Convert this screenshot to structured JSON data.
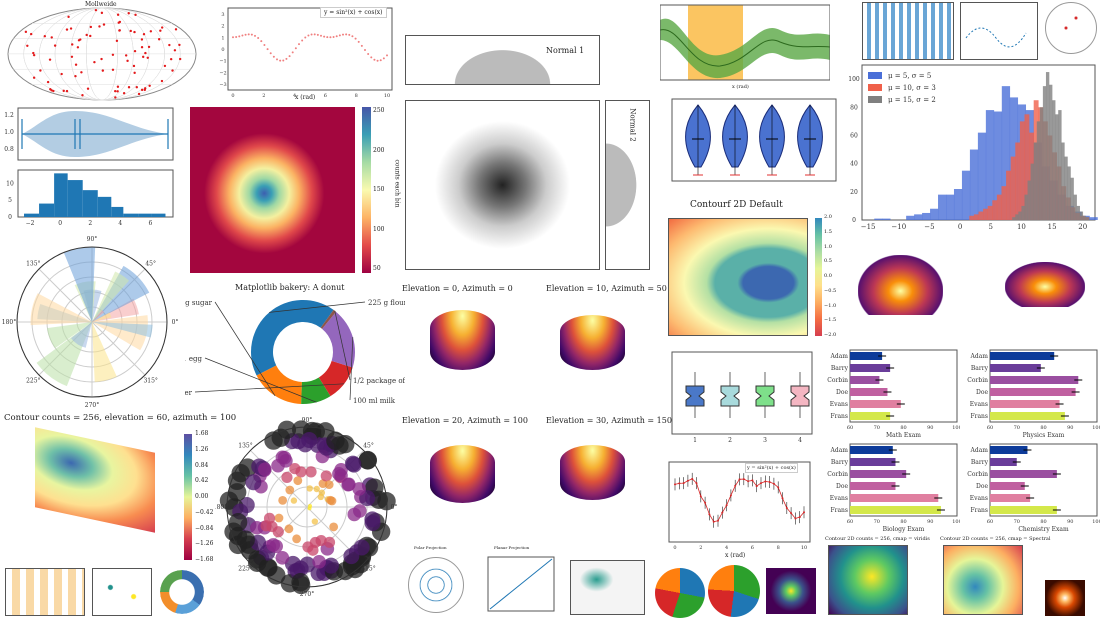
{
  "titles": {
    "mollweide": "Mollweide",
    "sin_legend": "y = sin²(x) + cos(x)",
    "sin_xlabel": "x (rad)",
    "sin_ylabel": "y",
    "colorbar_label": "counts each bin",
    "normal1": "Normal 1",
    "normal2": "Normal 2",
    "band_xlabel": "x (rad)",
    "contourf": "Contourf 2D Default",
    "donut": "Matplotlib bakery: A donut",
    "sphere1": "Elevation = 0, Azimuth = 0",
    "sphere2": "Elevation = 10, Azimuth = 50",
    "sphere3": "Elevation = 20, Azimuth = 100",
    "sphere4": "Elevation = 30, Azimuth = 150",
    "contour3d": "Contour counts = 256, elevation = 60, azimuth = 100",
    "errorbar_legend": "y = sin²(x) + cos(x)",
    "errorbar_xlabel": "x (rad)",
    "viridis": "Contour 2D counts = 256, cmap = viridis",
    "spectral": "Contour 2D counts = 256, cmap = Spectral",
    "polar_proj": "Polar Projection",
    "planar_proj": "Planar Projection"
  },
  "heat_cbar_ticks": [
    "250",
    "200",
    "150",
    "100",
    "50"
  ],
  "contour_cbar_ticks": [
    "2.0",
    "1.5",
    "1.0",
    "0.5",
    "0.0",
    "−0.5",
    "−1.0",
    "−1.5",
    "−2.0"
  ],
  "contour3d_cbar_ticks": [
    "1.68",
    "1.26",
    "0.84",
    "0.42",
    "0.00",
    "−0.42",
    "−0.84",
    "−1.26",
    "−1.68"
  ],
  "polar_angles": [
    "90°",
    "45°",
    "0°",
    "315°",
    "270°",
    "225°",
    "180°",
    "135°"
  ],
  "chart_data": [
    {
      "type": "pie",
      "title": "Matplotlib bakery: A donut",
      "labels": [
        "225 g flour",
        "90 g sugar",
        "1 egg",
        "60 g butter",
        "100 ml milk",
        "1/2 package of yeast"
      ],
      "values": [
        225,
        90,
        50,
        60,
        100,
        5
      ],
      "colors": [
        "#1f77b4",
        "#ff7f0e",
        "#2ca02c",
        "#d62728",
        "#9467bd",
        "#8c564b"
      ]
    },
    {
      "type": "bar",
      "orientation": "horizontal",
      "xlabel": "Math Exam",
      "categories": [
        "Adam",
        "Barry",
        "Corbin",
        "Doe",
        "Evans",
        "Frans"
      ],
      "values": [
        72,
        75,
        71,
        74,
        79,
        75
      ],
      "xlim": [
        60,
        100
      ],
      "xticks": [
        "60",
        "70",
        "80",
        "90",
        "100"
      ]
    },
    {
      "type": "bar",
      "orientation": "horizontal",
      "xlabel": "Physics Exam",
      "categories": [
        "Adam",
        "Barry",
        "Corbin",
        "Doe",
        "Evans",
        "Frans"
      ],
      "values": [
        84,
        79,
        93,
        92,
        86,
        88
      ],
      "xlim": [
        60,
        100
      ],
      "xticks": [
        "60",
        "70",
        "80",
        "90",
        "100"
      ]
    },
    {
      "type": "bar",
      "orientation": "horizontal",
      "xlabel": "Biology Exam",
      "categories": [
        "Adam",
        "Barry",
        "Corbin",
        "Doe",
        "Evans",
        "Frans"
      ],
      "values": [
        76,
        77,
        81,
        77,
        93,
        94
      ],
      "xlim": [
        60,
        100
      ],
      "xticks": [
        "60",
        "70",
        "80",
        "90",
        "100"
      ]
    },
    {
      "type": "bar",
      "orientation": "horizontal",
      "xlabel": "Chemistry Exam",
      "categories": [
        "Adam",
        "Barry",
        "Corbin",
        "Doe",
        "Evans",
        "Frans"
      ],
      "values": [
        74,
        70,
        85,
        73,
        75,
        85
      ],
      "xlim": [
        60,
        100
      ],
      "xticks": [
        "60",
        "70",
        "80",
        "90",
        "100"
      ]
    },
    {
      "type": "bar",
      "title": "",
      "bin_edges": [
        -2.4,
        -1.4,
        -0.4,
        0.5,
        1.5,
        2.5,
        3.4,
        4.2,
        5.2,
        6.1,
        7.0
      ],
      "values": [
        1,
        4,
        13,
        11,
        8,
        6,
        3,
        1,
        1,
        1
      ],
      "ylim": [
        0,
        14
      ],
      "xticks": [
        "−2",
        "0",
        "2",
        "4",
        "6"
      ],
      "yticks": [
        "0",
        "5",
        "10"
      ]
    },
    {
      "type": "bar",
      "title": "",
      "legend": "top-left",
      "xlim": [
        -16,
        22
      ],
      "ylim": [
        0,
        110
      ],
      "xticks": [
        "−15",
        "−10",
        "−5",
        "0",
        "5",
        "10",
        "15",
        "20"
      ],
      "yticks": [
        "0",
        "20",
        "40",
        "60",
        "80",
        "100"
      ],
      "series": [
        {
          "name": "μ = 5, σ = 5",
          "color": "#4a6fd8",
          "bin_start": -14,
          "bin_width": 1.3,
          "values": [
            1,
            1,
            0,
            0,
            3,
            4,
            5,
            8,
            18,
            18,
            22,
            35,
            50,
            62,
            78,
            77,
            95,
            87,
            82,
            78,
            55,
            38,
            28,
            18,
            10,
            6,
            3,
            2
          ]
        },
        {
          "name": "μ = 10, σ = 3",
          "color": "#f0604a",
          "bin_start": 1.5,
          "bin_width": 0.75,
          "values": [
            3,
            4,
            6,
            8,
            10,
            14,
            18,
            24,
            35,
            45,
            55,
            70,
            75,
            62,
            85,
            80,
            70,
            60,
            48,
            38,
            24,
            16,
            9,
            5,
            3,
            2
          ]
        },
        {
          "name": "μ = 15, σ = 2",
          "color": "#808080",
          "bin_start": 8.5,
          "bin_width": 0.5,
          "values": [
            2,
            4,
            6,
            10,
            18,
            28,
            40,
            55,
            70,
            80,
            95,
            105,
            96,
            85,
            75,
            78,
            55,
            45,
            38,
            30,
            18,
            10,
            6,
            3,
            2
          ]
        }
      ]
    },
    {
      "type": "scatter",
      "title": "",
      "legend": "y = sin²(x) + cos(x)",
      "xlabel": "x (rad)",
      "ylabel": "y",
      "xlim": [
        0,
        10
      ],
      "ylim": [
        -3.5,
        3.5
      ],
      "function": "y = sin²(x) + cos(x)",
      "x_start": 0,
      "x_end": 10,
      "points": 50,
      "xticks": [
        "0",
        "2",
        "4",
        "6",
        "8",
        "10"
      ],
      "yticks": [
        "3",
        "2",
        "1",
        "0",
        "−1",
        "−2",
        "−3"
      ]
    },
    {
      "type": "line",
      "title": "",
      "legend": "y = sin²(x) + cos(x)",
      "xlabel": "x (rad)",
      "function": "y = sin²(x) + cos(x)",
      "errorbars": true,
      "xlim": [
        0,
        10
      ],
      "xticks": [
        "0",
        "2",
        "4",
        "6",
        "8",
        "10"
      ]
    }
  ]
}
